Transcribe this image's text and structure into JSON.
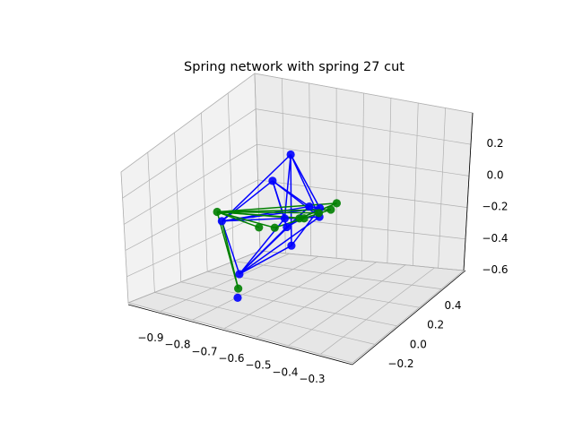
{
  "chart_data": {
    "type": "scatter",
    "title": "Spring network with spring 27 cut",
    "projection": "3d",
    "xlabel": "",
    "ylabel": "",
    "zlabel": "",
    "grid": true,
    "x_ticks": [
      "−0.9",
      "−0.8",
      "−0.7",
      "−0.6",
      "−0.5",
      "−0.4",
      "−0.3"
    ],
    "y_ticks": [
      "−0.2",
      "0.0",
      "0.2",
      "0.4"
    ],
    "z_ticks": [
      "−0.6",
      "−0.4",
      "−0.2",
      "0.0",
      "0.2"
    ],
    "colors": {
      "intact": "#0000ff",
      "cut": "#008000",
      "grid": "#b0b0b0"
    },
    "nodes": [
      {
        "id": 0,
        "x": -0.88,
        "y": 0.15,
        "z": -0.36,
        "color": "blue"
      },
      {
        "id": 1,
        "x": -0.73,
        "y": 0.48,
        "z": -0.05,
        "color": "blue"
      },
      {
        "id": 2,
        "x": -0.47,
        "y": 0.05,
        "z": 0.15,
        "color": "blue"
      },
      {
        "id": 3,
        "x": -0.35,
        "y": 0.18,
        "z": -0.1,
        "color": "blue"
      },
      {
        "id": 4,
        "x": -0.3,
        "y": 0.2,
        "z": -0.11,
        "color": "blue"
      },
      {
        "id": 5,
        "x": -0.48,
        "y": 0.15,
        "z": -0.21,
        "color": "blue"
      },
      {
        "id": 6,
        "x": -0.44,
        "y": 0.12,
        "z": -0.24,
        "color": "blue"
      },
      {
        "id": 7,
        "x": -0.35,
        "y": 0.05,
        "z": -0.3,
        "color": "blue"
      },
      {
        "id": 8,
        "x": -0.46,
        "y": 0.38,
        "z": -0.36,
        "color": "blue"
      },
      {
        "id": 9,
        "x": -0.55,
        "y": -0.1,
        "z": -0.47,
        "color": "blue"
      },
      {
        "id": 10,
        "x": -0.43,
        "y": -0.25,
        "z": -0.5,
        "color": "blue"
      },
      {
        "id": 11,
        "x": -0.91,
        "y": 0.15,
        "z": -0.3,
        "color": "green"
      },
      {
        "id": 12,
        "x": -0.35,
        "y": 0.25,
        "z": -0.2,
        "color": "green"
      },
      {
        "id": 13,
        "x": -0.3,
        "y": 0.28,
        "z": -0.18,
        "color": "green"
      },
      {
        "id": 14,
        "x": -0.28,
        "y": 0.3,
        "z": -0.14,
        "color": "green"
      },
      {
        "id": 15,
        "x": -0.43,
        "y": 0.2,
        "z": -0.23,
        "color": "green"
      },
      {
        "id": 16,
        "x": -0.47,
        "y": -0.2,
        "z": -0.48,
        "color": "green"
      },
      {
        "id": 17,
        "x": -0.4,
        "y": 0.2,
        "z": -0.22,
        "color": "green"
      },
      {
        "id": 18,
        "x": -0.5,
        "y": 0.1,
        "z": -0.25,
        "color": "green"
      },
      {
        "id": 19,
        "x": -0.6,
        "y": 0.1,
        "z": -0.28,
        "color": "green"
      }
    ],
    "edges": [
      {
        "from": 0,
        "to": 1,
        "color": "blue"
      },
      {
        "from": 0,
        "to": 2,
        "color": "blue"
      },
      {
        "from": 0,
        "to": 3,
        "color": "blue"
      },
      {
        "from": 0,
        "to": 4,
        "color": "blue"
      },
      {
        "from": 0,
        "to": 8,
        "color": "blue"
      },
      {
        "from": 0,
        "to": 9,
        "color": "blue"
      },
      {
        "from": 1,
        "to": 4,
        "color": "blue"
      },
      {
        "from": 1,
        "to": 5,
        "color": "blue"
      },
      {
        "from": 1,
        "to": 7,
        "color": "blue"
      },
      {
        "from": 1,
        "to": 8,
        "color": "blue"
      },
      {
        "from": 2,
        "to": 3,
        "color": "blue"
      },
      {
        "from": 2,
        "to": 5,
        "color": "blue"
      },
      {
        "from": 2,
        "to": 8,
        "color": "blue"
      },
      {
        "from": 2,
        "to": 6,
        "color": "blue"
      },
      {
        "from": 3,
        "to": 4,
        "color": "blue"
      },
      {
        "from": 3,
        "to": 6,
        "color": "blue"
      },
      {
        "from": 3,
        "to": 9,
        "color": "blue"
      },
      {
        "from": 4,
        "to": 6,
        "color": "blue"
      },
      {
        "from": 4,
        "to": 7,
        "color": "blue"
      },
      {
        "from": 5,
        "to": 9,
        "color": "blue"
      },
      {
        "from": 6,
        "to": 9,
        "color": "blue"
      },
      {
        "from": 7,
        "to": 9,
        "color": "blue"
      },
      {
        "from": 8,
        "to": 9,
        "color": "blue"
      },
      {
        "from": 5,
        "to": 8,
        "color": "blue"
      },
      {
        "from": 11,
        "to": 12,
        "color": "green"
      },
      {
        "from": 11,
        "to": 13,
        "color": "green"
      },
      {
        "from": 11,
        "to": 14,
        "color": "green"
      },
      {
        "from": 11,
        "to": 15,
        "color": "green"
      },
      {
        "from": 11,
        "to": 17,
        "color": "green"
      },
      {
        "from": 11,
        "to": 18,
        "color": "green"
      },
      {
        "from": 11,
        "to": 19,
        "color": "green"
      },
      {
        "from": 0,
        "to": 16,
        "color": "green"
      },
      {
        "from": 11,
        "to": 16,
        "color": "green"
      },
      {
        "from": 15,
        "to": 14,
        "color": "green"
      },
      {
        "from": 18,
        "to": 13,
        "color": "green"
      }
    ]
  }
}
